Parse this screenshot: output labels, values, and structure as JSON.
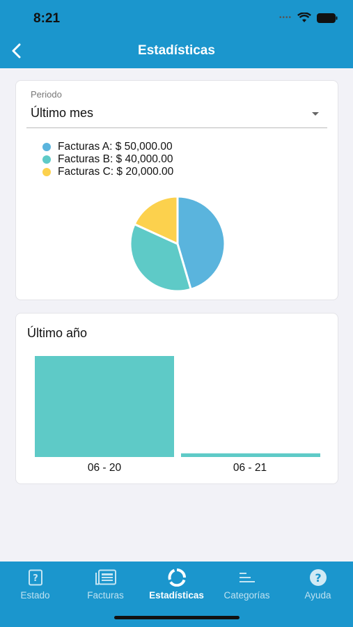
{
  "status": {
    "time": "8:21"
  },
  "nav": {
    "title": "Estadísticas"
  },
  "period": {
    "label": "Periodo",
    "value": "Último mes"
  },
  "legend": [
    {
      "label": "Facturas A: $ 50,000.00",
      "color": "#5ab4dd"
    },
    {
      "label": "Facturas B: $ 40,000.00",
      "color": "#5ecac7"
    },
    {
      "label": "Facturas C: $ 20,000.00",
      "color": "#fcd14d"
    }
  ],
  "yearly": {
    "title": "Último año"
  },
  "chart_data": [
    {
      "type": "pie",
      "categories": [
        "Facturas A",
        "Facturas B",
        "Facturas C"
      ],
      "values": [
        50000,
        40000,
        20000
      ],
      "colors": [
        "#5ab4dd",
        "#5ecac7",
        "#fcd14d"
      ]
    },
    {
      "type": "bar",
      "categories": [
        "06 - 20",
        "06 - 21"
      ],
      "values": [
        110000,
        4000
      ],
      "colors": [
        "#5ecac7",
        "#5ecac7"
      ]
    }
  ],
  "tabs": [
    {
      "label": "Estado",
      "icon": "document-question-icon",
      "active": false
    },
    {
      "label": "Facturas",
      "icon": "invoices-icon",
      "active": false
    },
    {
      "label": "Estadísticas",
      "icon": "donut-chart-icon",
      "active": true
    },
    {
      "label": "Categorías",
      "icon": "categories-icon",
      "active": false
    },
    {
      "label": "Ayuda",
      "icon": "help-icon",
      "active": false
    }
  ]
}
